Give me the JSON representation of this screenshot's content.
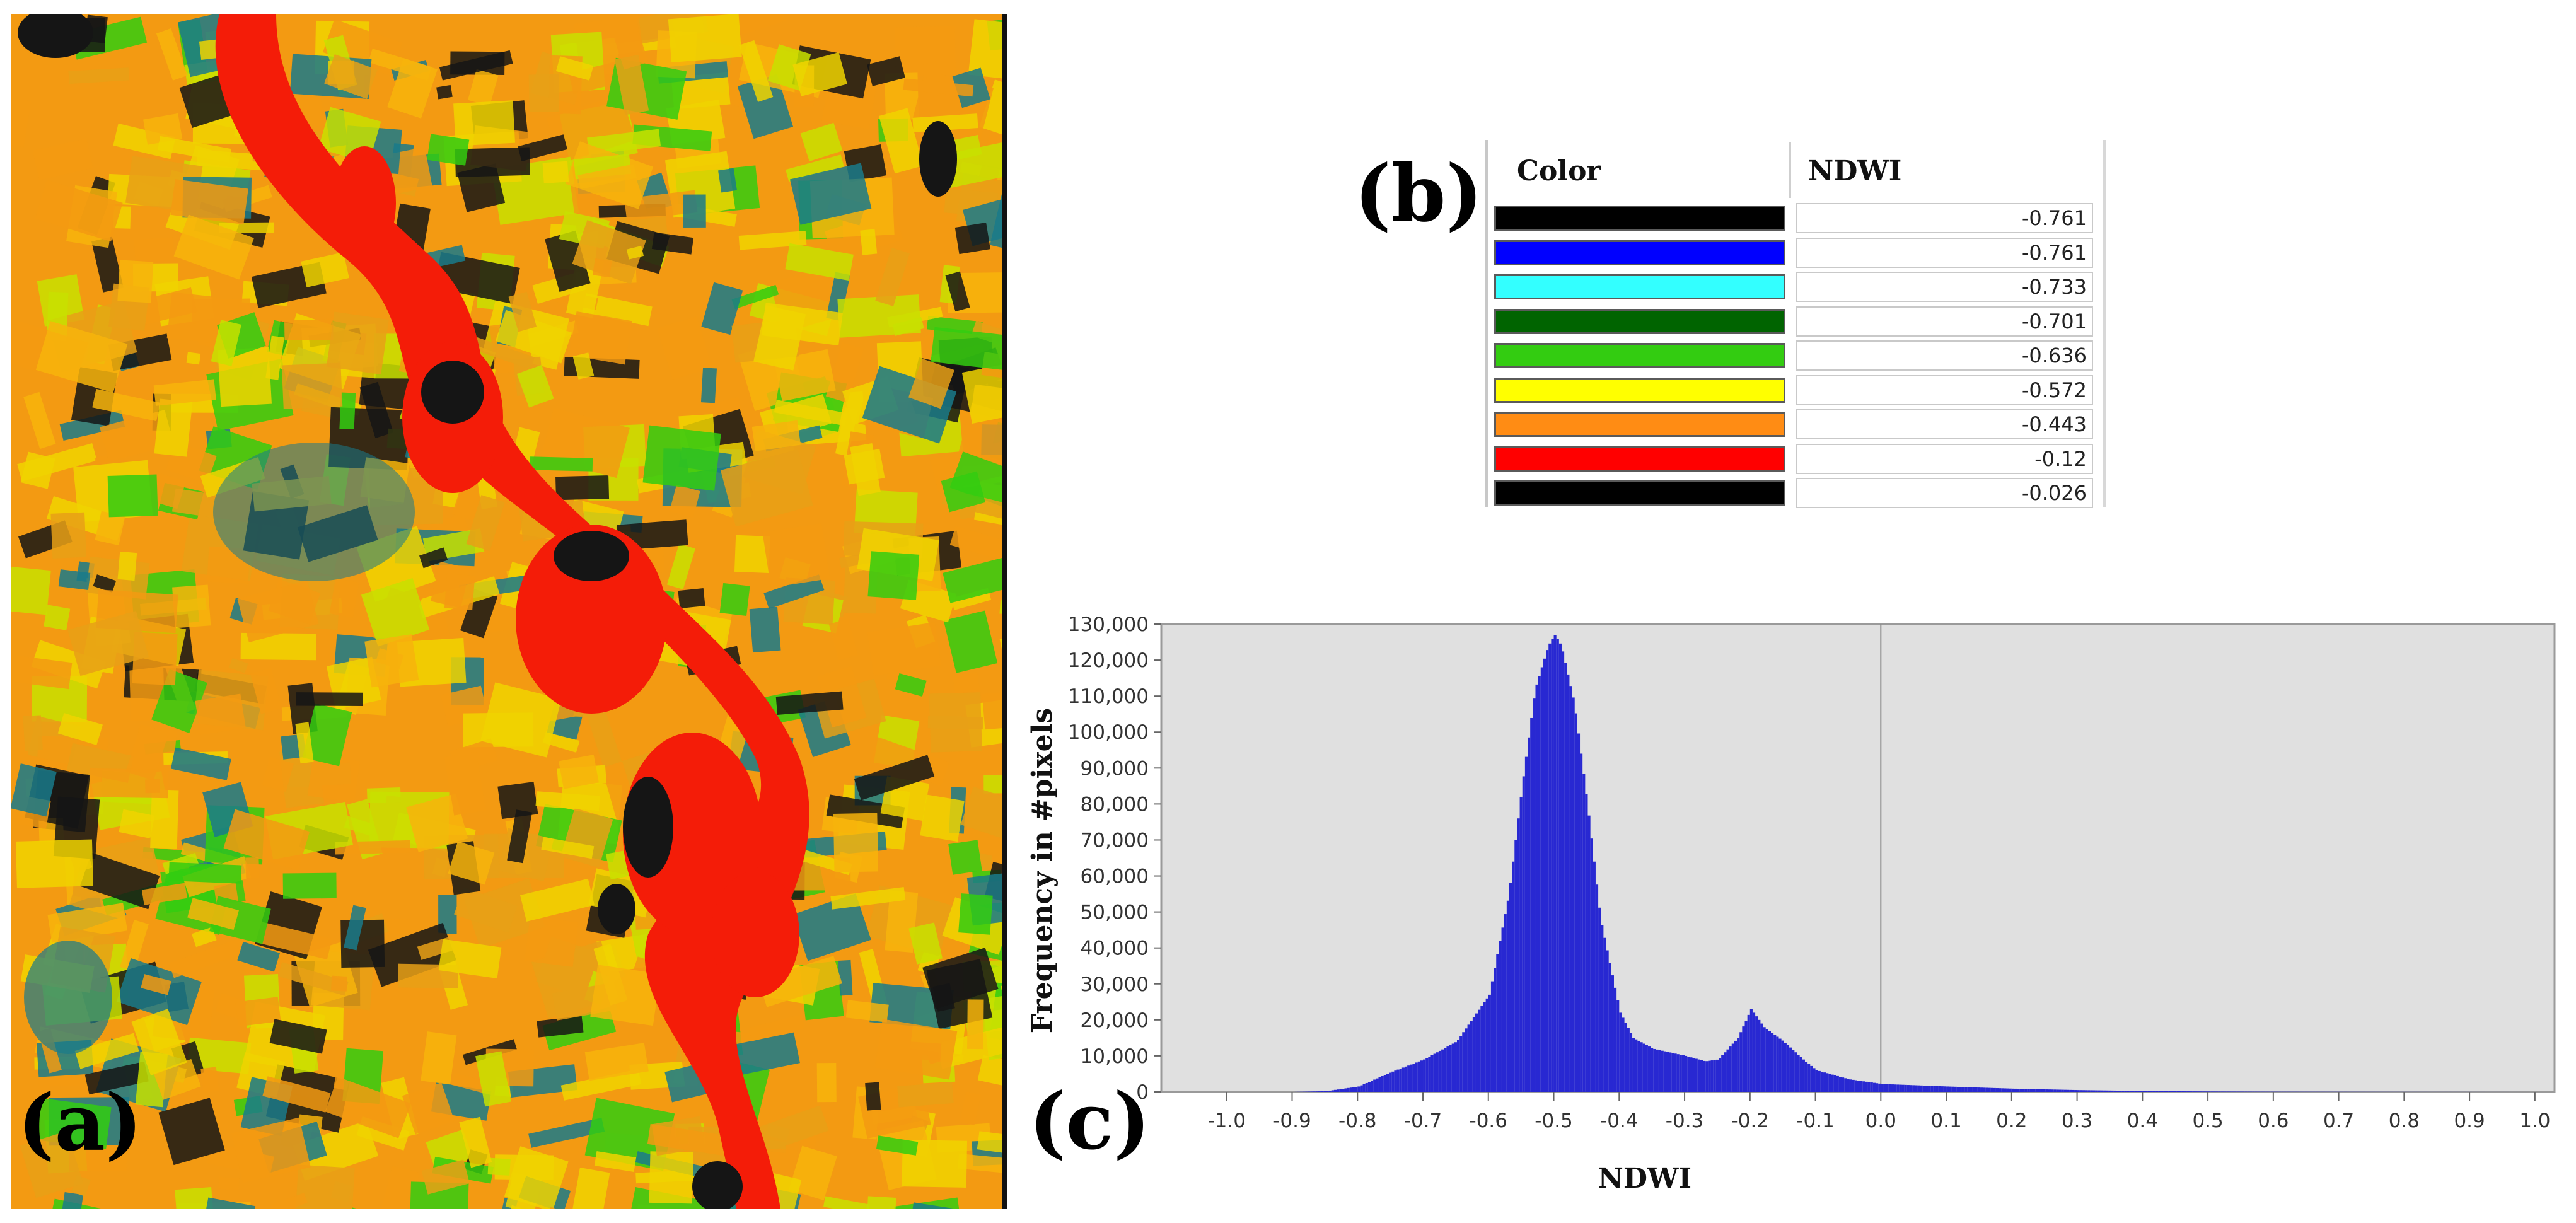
{
  "panels": {
    "a": {
      "label": "(a)"
    },
    "b": {
      "label": "(b)"
    },
    "c": {
      "label": "(c)"
    }
  },
  "color_table": {
    "headers": {
      "color": "Color",
      "ndwi": "NDWI"
    },
    "rows": [
      {
        "color": "#000000",
        "value": "-0.761"
      },
      {
        "color": "#0000ff",
        "value": "-0.761"
      },
      {
        "color": "#33ffff",
        "value": "-0.733"
      },
      {
        "color": "#006400",
        "value": "-0.701"
      },
      {
        "color": "#33cc11",
        "value": "-0.636"
      },
      {
        "color": "#ffff00",
        "value": "-0.572"
      },
      {
        "color": "#ff8c14",
        "value": "-0.443"
      },
      {
        "color": "#ff0000",
        "value": "-0.12"
      },
      {
        "color": "#000000",
        "value": "-0.026"
      }
    ]
  },
  "map_colors": {
    "base": "#f39a12",
    "yellow": "#f0d400",
    "lime": "#c8e000",
    "green": "#33cc11",
    "red": "#f41c08",
    "dark": "#151515",
    "teal": "#1a7a8a"
  },
  "chart_data": {
    "type": "bar",
    "title": "",
    "xlabel": "NDWI",
    "ylabel": "Frequency in #pixels",
    "xlim": [
      -1.0,
      1.0
    ],
    "ylim": [
      0,
      130000
    ],
    "bar_color": "#2828d2",
    "plot_bg": "#e0e0e0",
    "zero_line": 0.0,
    "xticks": [
      "-1.0",
      "-0.9",
      "-0.8",
      "-0.7",
      "-0.6",
      "-0.5",
      "-0.4",
      "-0.3",
      "-0.2",
      "-0.1",
      "0.0",
      "0.1",
      "0.2",
      "0.3",
      "0.4",
      "0.5",
      "0.6",
      "0.7",
      "0.8",
      "0.9",
      "1.0"
    ],
    "yticks": [
      "0",
      "10,000",
      "20,000",
      "30,000",
      "40,000",
      "50,000",
      "60,000",
      "70,000",
      "80,000",
      "90,000",
      "100,000",
      "110,000",
      "120,000",
      "130,000"
    ],
    "x": [
      -0.9,
      -0.85,
      -0.8,
      -0.75,
      -0.7,
      -0.65,
      -0.6,
      -0.57,
      -0.55,
      -0.53,
      -0.51,
      -0.5,
      -0.49,
      -0.47,
      -0.45,
      -0.43,
      -0.4,
      -0.38,
      -0.35,
      -0.3,
      -0.27,
      -0.25,
      -0.22,
      -0.2,
      -0.18,
      -0.15,
      -0.12,
      -0.1,
      -0.05,
      0.0,
      0.1,
      0.2,
      0.3,
      0.4,
      0.5,
      0.6,
      0.8,
      1.0
    ],
    "values": [
      0,
      200,
      1500,
      5500,
      9000,
      14000,
      27000,
      55000,
      85000,
      112000,
      124000,
      127000,
      124000,
      108000,
      80000,
      48000,
      22000,
      15000,
      12000,
      10000,
      8500,
      9000,
      15000,
      23000,
      18000,
      14000,
      9000,
      6000,
      3500,
      2200,
      1500,
      900,
      500,
      250,
      120,
      60,
      20,
      0
    ]
  }
}
